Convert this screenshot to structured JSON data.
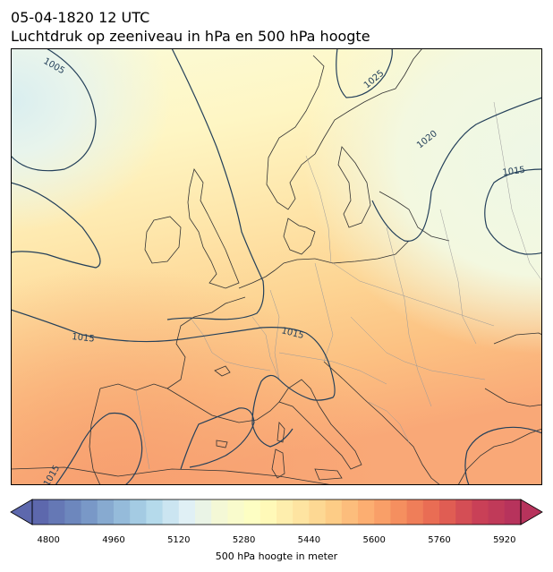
{
  "title": {
    "line1": "05-04-1820 12 UTC",
    "line2": "Luchtdruk op zeeniveau in hPa en 500 hPa hoogte"
  },
  "map": {
    "field": "500 hPa height (filled contours)",
    "isobar_labels": [
      "1005",
      "1025",
      "1020",
      "1015",
      "1015",
      "1015",
      "1015"
    ],
    "colors": {
      "isobar": "#24405a",
      "coastline": "#333333",
      "border": "#9a9a9a"
    }
  },
  "colorbar": {
    "label": "500 hPa hoogte in meter",
    "ticks": [
      "4800",
      "4960",
      "5120",
      "5280",
      "5440",
      "5600",
      "5760",
      "5920"
    ],
    "min": 4760,
    "max": 5960,
    "step": 40,
    "extend": "both",
    "colormap_stops": [
      "#5d68ad",
      "#6f8bbf",
      "#8db2d5",
      "#aed6e9",
      "#dff0f6",
      "#f6f9d4",
      "#ffffbf",
      "#fee8a6",
      "#fdce88",
      "#fcad70",
      "#f48a5c",
      "#e56452",
      "#cb4256",
      "#b7335c"
    ]
  }
}
